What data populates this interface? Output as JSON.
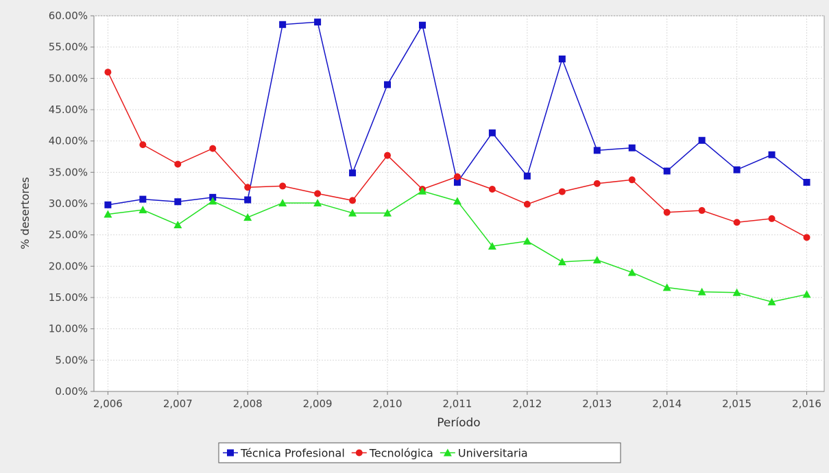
{
  "chart_data": {
    "type": "line",
    "title": "",
    "xlabel": "Período",
    "ylabel": "% desertores",
    "xlim": [
      2005.8,
      2016.25
    ],
    "ylim": [
      0,
      0.6
    ],
    "x_ticks": [
      2006,
      2007,
      2008,
      2009,
      2010,
      2011,
      2012,
      2013,
      2014,
      2015,
      2016
    ],
    "x_tick_labels": [
      "2,006",
      "2,007",
      "2,008",
      "2,009",
      "2,010",
      "2,011",
      "2,012",
      "2,013",
      "2,014",
      "2,015",
      "2,016"
    ],
    "y_ticks": [
      0,
      0.05,
      0.1,
      0.15,
      0.2,
      0.25,
      0.3,
      0.35,
      0.4,
      0.45,
      0.5,
      0.55,
      0.6
    ],
    "y_tick_labels": [
      "0.00%",
      "5.00%",
      "10.00%",
      "15.00%",
      "20.00%",
      "25.00%",
      "30.00%",
      "35.00%",
      "40.00%",
      "45.00%",
      "50.00%",
      "55.00%",
      "60.00%"
    ],
    "grid": true,
    "legend_position": "bottom",
    "x": [
      2006,
      2006.5,
      2007,
      2007.5,
      2008,
      2008.5,
      2009,
      2009.5,
      2010,
      2010.5,
      2011,
      2011.5,
      2012,
      2012.5,
      2013,
      2013.5,
      2014,
      2014.5,
      2015,
      2015.5,
      2016
    ],
    "series": [
      {
        "name": "Técnica Profesional",
        "color": "#1212c8",
        "marker": "square",
        "values": [
          0.298,
          0.307,
          0.303,
          0.31,
          0.306,
          0.586,
          0.59,
          0.349,
          0.49,
          0.585,
          0.334,
          0.413,
          0.344,
          0.531,
          0.385,
          0.389,
          0.352,
          0.401,
          0.354,
          0.378,
          0.334
        ]
      },
      {
        "name": "Tecnológica",
        "color": "#e81c1c",
        "marker": "circle",
        "values": [
          0.51,
          0.394,
          0.363,
          0.388,
          0.326,
          0.328,
          0.316,
          0.305,
          0.377,
          0.323,
          0.343,
          0.323,
          0.299,
          0.319,
          0.332,
          0.338,
          0.286,
          0.289,
          0.27,
          0.276,
          0.246
        ]
      },
      {
        "name": "Universitaria",
        "color": "#22e022",
        "marker": "triangle",
        "values": [
          0.283,
          0.29,
          0.266,
          0.304,
          0.278,
          0.301,
          0.301,
          0.285,
          0.285,
          0.32,
          0.304,
          0.232,
          0.24,
          0.207,
          0.21,
          0.19,
          0.166,
          0.159,
          0.158,
          0.143,
          0.155
        ]
      }
    ]
  }
}
